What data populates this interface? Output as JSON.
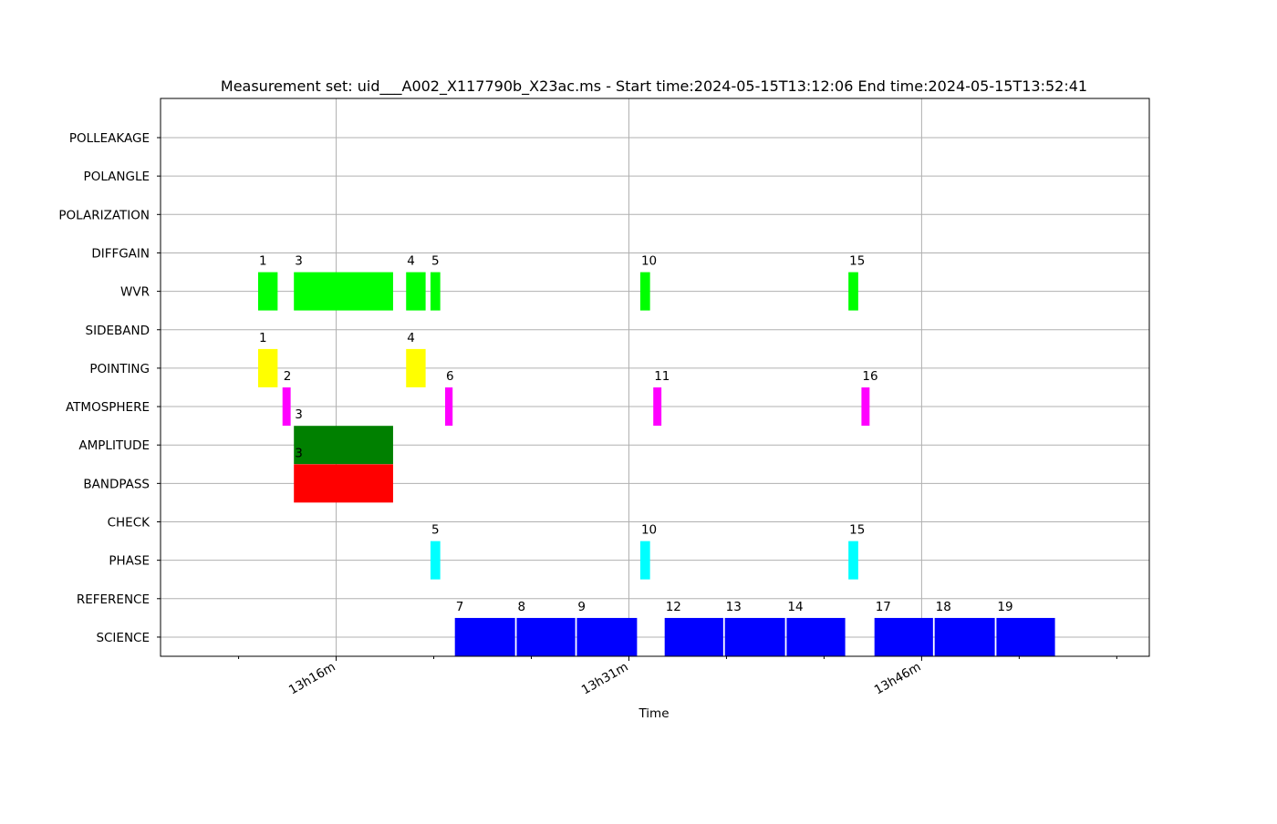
{
  "chart_data": {
    "type": "bar",
    "title": "Measurement set: uid___A002_X117790b_X23ac.ms - Start time:2024-05-15T13:12:06 End time:2024-05-15T13:52:41",
    "xlabel": "Time",
    "ylabel": "",
    "x_axis": {
      "unit": "time of day",
      "range": [
        "13h07m00s",
        "13h57m40s"
      ],
      "major_ticks": [
        {
          "time": "13h16m00s",
          "label": "13h16m"
        },
        {
          "time": "13h31m00s",
          "label": "13h31m"
        },
        {
          "time": "13h46m00s",
          "label": "13h46m"
        }
      ],
      "minor_ticks": [
        "13h11m00s",
        "13h21m00s",
        "13h26m00s",
        "13h36m00s",
        "13h41m00s",
        "13h51m00s",
        "13h56m00s"
      ]
    },
    "categories": [
      "POLLEAKAGE",
      "POLANGLE",
      "POLARIZATION",
      "DIFFGAIN",
      "WVR",
      "SIDEBAND",
      "POINTING",
      "ATMOSPHERE",
      "AMPLITUDE",
      "BANDPASS",
      "CHECK",
      "PHASE",
      "REFERENCE",
      "SCIENCE"
    ],
    "grid": true,
    "legend": "none",
    "series": [
      {
        "category": "WVR",
        "color": "#00ff00",
        "scans": [
          {
            "scan": "1",
            "start": "13h12m00s",
            "end": "13h13m00s"
          },
          {
            "scan": "3",
            "start": "13h13m50s",
            "end": "13h18m55s"
          },
          {
            "scan": "4",
            "start": "13h19m35s",
            "end": "13h20m35s"
          },
          {
            "scan": "5",
            "start": "13h20m50s",
            "end": "13h21m20s"
          },
          {
            "scan": "10",
            "start": "13h31m35s",
            "end": "13h32m05s"
          },
          {
            "scan": "15",
            "start": "13h42m15s",
            "end": "13h42m45s"
          }
        ]
      },
      {
        "category": "POINTING",
        "color": "#ffff00",
        "scans": [
          {
            "scan": "1",
            "start": "13h12m00s",
            "end": "13h13m00s"
          },
          {
            "scan": "4",
            "start": "13h19m35s",
            "end": "13h20m35s"
          }
        ]
      },
      {
        "category": "ATMOSPHERE",
        "color": "#ff00ff",
        "scans": [
          {
            "scan": "2",
            "start": "13h13m15s",
            "end": "13h13m40s"
          },
          {
            "scan": "6",
            "start": "13h21m35s",
            "end": "13h21m58s"
          },
          {
            "scan": "11",
            "start": "13h32m15s",
            "end": "13h32m40s"
          },
          {
            "scan": "16",
            "start": "13h42m55s",
            "end": "13h43m20s"
          }
        ]
      },
      {
        "category": "AMPLITUDE",
        "color": "#008000",
        "scans": [
          {
            "scan": "3",
            "start": "13h13m50s",
            "end": "13h18m55s"
          }
        ]
      },
      {
        "category": "BANDPASS",
        "color": "#ff0000",
        "scans": [
          {
            "scan": "3",
            "start": "13h13m50s",
            "end": "13h18m55s"
          }
        ]
      },
      {
        "category": "PHASE",
        "color": "#00ffff",
        "scans": [
          {
            "scan": "5",
            "start": "13h20m50s",
            "end": "13h21m20s"
          },
          {
            "scan": "10",
            "start": "13h31m35s",
            "end": "13h32m05s"
          },
          {
            "scan": "15",
            "start": "13h42m15s",
            "end": "13h42m45s"
          }
        ]
      },
      {
        "category": "SCIENCE",
        "color": "#0000ff",
        "scans": [
          {
            "scan": "7",
            "start": "13h22m05s",
            "end": "13h25m10s"
          },
          {
            "scan": "8",
            "start": "13h25m15s",
            "end": "13h28m15s"
          },
          {
            "scan": "9",
            "start": "13h28m20s",
            "end": "13h31m25s"
          },
          {
            "scan": "12",
            "start": "13h32m50s",
            "end": "13h35m50s"
          },
          {
            "scan": "13",
            "start": "13h35m55s",
            "end": "13h39m00s"
          },
          {
            "scan": "14",
            "start": "13h39m05s",
            "end": "13h42m05s"
          },
          {
            "scan": "17",
            "start": "13h43m35s",
            "end": "13h46m35s"
          },
          {
            "scan": "18",
            "start": "13h46m40s",
            "end": "13h49m45s"
          },
          {
            "scan": "19",
            "start": "13h49m50s",
            "end": "13h52m50s"
          }
        ]
      }
    ]
  }
}
